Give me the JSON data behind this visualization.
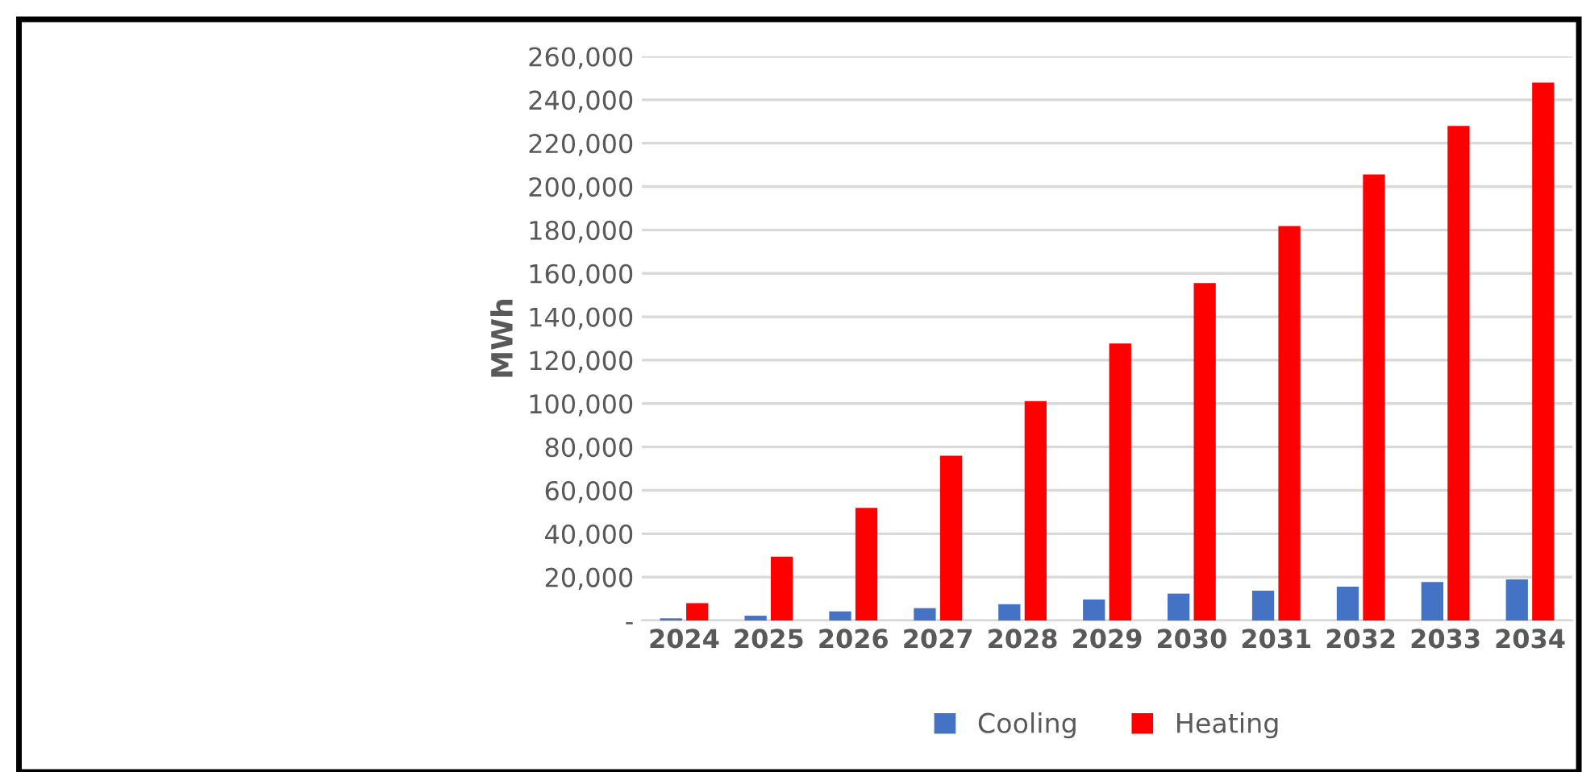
{
  "chart_data": {
    "type": "bar",
    "ylabel": "MWh",
    "categories": [
      "2024",
      "2025",
      "2026",
      "2027",
      "2028",
      "2029",
      "2030",
      "2031",
      "2032",
      "2033",
      "2034"
    ],
    "series": [
      {
        "name": "Cooling",
        "color": "#4472c4",
        "values": [
          1000,
          2200,
          4200,
          5700,
          7500,
          9700,
          12400,
          13700,
          15600,
          17700,
          18900
        ]
      },
      {
        "name": "Heating",
        "color": "#ff0000",
        "values": [
          8000,
          29400,
          51900,
          76000,
          101100,
          127700,
          155500,
          181800,
          205600,
          228000,
          247900
        ]
      }
    ],
    "ylim": [
      0,
      260000
    ],
    "yticks": [
      {
        "value": 0,
        "label": "-"
      },
      {
        "value": 20000,
        "label": "20,000"
      },
      {
        "value": 40000,
        "label": "40,000"
      },
      {
        "value": 60000,
        "label": "60,000"
      },
      {
        "value": 80000,
        "label": "80,000"
      },
      {
        "value": 100000,
        "label": "100,000"
      },
      {
        "value": 120000,
        "label": "120,000"
      },
      {
        "value": 140000,
        "label": "140,000"
      },
      {
        "value": 160000,
        "label": "160,000"
      },
      {
        "value": 180000,
        "label": "180,000"
      },
      {
        "value": 200000,
        "label": "200,000"
      },
      {
        "value": 220000,
        "label": "220,000"
      },
      {
        "value": 240000,
        "label": "240,000"
      },
      {
        "value": 260000,
        "label": "260,000"
      }
    ],
    "grid": "y",
    "legend": "bottom"
  }
}
